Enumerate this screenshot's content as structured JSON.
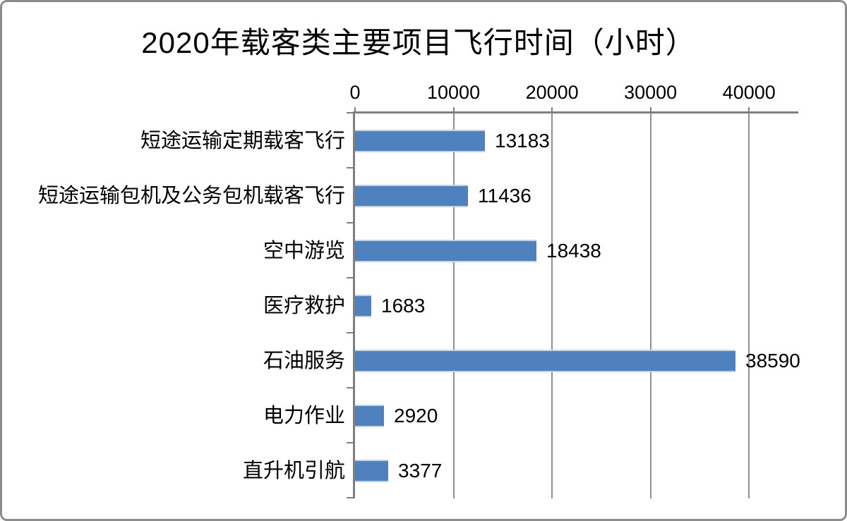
{
  "window": {
    "background": "#ffffff",
    "border_color": "#8c8c8c"
  },
  "chart_data": {
    "type": "bar",
    "orientation": "horizontal",
    "title": "2020年载客类主要项目飞行时间（小时）",
    "categories": [
      "短途运输定期载客飞行",
      "短途运输包机及公务包机载客飞行",
      "空中游览",
      "医疗救护",
      "石油服务",
      "电力作业",
      "直升机引航"
    ],
    "values": [
      13183,
      11436,
      18438,
      1683,
      38590,
      2920,
      3377
    ],
    "value_labels": [
      "13183",
      "11436",
      "18438",
      "1683",
      "38590",
      "2920",
      "3377"
    ],
    "xlabel": "",
    "ylabel": "",
    "x_axis": {
      "position": "top",
      "min": 0,
      "max": 45000,
      "tick_interval": 10000,
      "tick_labels": [
        "0",
        "10000",
        "20000",
        "30000",
        "40000"
      ]
    },
    "grid": true,
    "legend": false,
    "data_labels_shown": true,
    "colors": {
      "bar_fill": "#4E81BD",
      "bar_edge": "#C2D2E8",
      "axis_line": "#7F7F7F",
      "gridline": "#8F8F8F",
      "text": "#000000"
    }
  }
}
